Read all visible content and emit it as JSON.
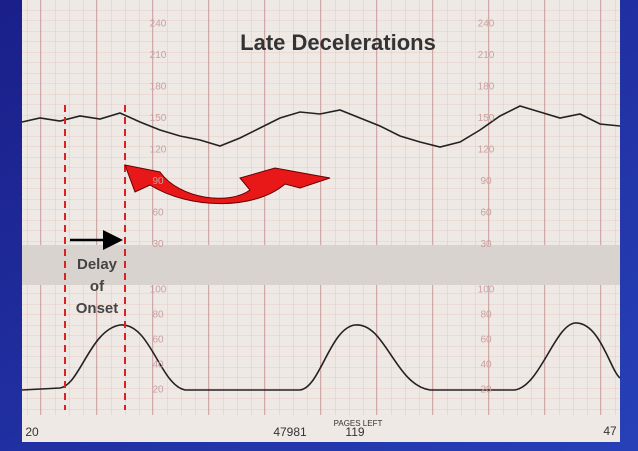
{
  "title": "Late Decelerations",
  "annotation": [
    "Delay",
    "of",
    "Onset"
  ],
  "upper_scale": [
    "240",
    "210",
    "180",
    "150",
    "120",
    "90",
    "60",
    "30"
  ],
  "lower_scale": [
    "100",
    "80",
    "60",
    "40",
    "20"
  ],
  "footer": [
    "20",
    "47981",
    "119",
    "PAGES LEFT",
    "47"
  ]
}
